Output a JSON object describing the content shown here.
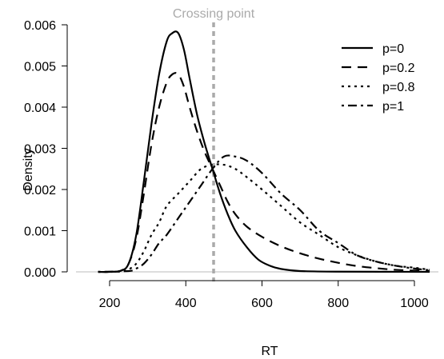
{
  "chart_data": {
    "type": "line",
    "xlabel": "RT",
    "ylabel": "Density",
    "xlim": [
      170,
      1040
    ],
    "ylim": [
      0,
      0.0062
    ],
    "x_ticks": [
      "200",
      "400",
      "600",
      "800",
      "1000"
    ],
    "x_tick_values": [
      200,
      400,
      600,
      800,
      1000
    ],
    "y_ticks": [
      "0.000",
      "0.001",
      "0.002",
      "0.003",
      "0.004",
      "0.005",
      "0.006"
    ],
    "y_tick_values": [
      0,
      0.001,
      0.002,
      0.003,
      0.004,
      0.005,
      0.006
    ],
    "annotation": {
      "label": "Crossing point",
      "x": 473,
      "color": "#aaaaaa"
    },
    "baseline_color": "#bbbbbb",
    "legend_position": "top-right",
    "series": [
      {
        "name": "p=0",
        "dash": "solid",
        "x": [
          170,
          200,
          230,
          250,
          270,
          290,
          310,
          330,
          350,
          365,
          380,
          395,
          410,
          430,
          450,
          470,
          490,
          510,
          530,
          560,
          590,
          620,
          650,
          700,
          800,
          1040
        ],
        "y": [
          0,
          0.0,
          3e-05,
          0.0002,
          0.0009,
          0.0022,
          0.0036,
          0.0048,
          0.0056,
          0.0058,
          0.0058,
          0.0054,
          0.0047,
          0.0038,
          0.0031,
          0.0025,
          0.0019,
          0.0014,
          0.001,
          0.0006,
          0.0003,
          0.00015,
          7e-05,
          2e-05,
          5e-06,
          0
        ]
      },
      {
        "name": "p=0.2",
        "dash": "dashed",
        "x": [
          170,
          200,
          230,
          250,
          270,
          290,
          310,
          330,
          350,
          365,
          380,
          395,
          410,
          430,
          450,
          470,
          490,
          510,
          530,
          560,
          600,
          650,
          700,
          750,
          800,
          850,
          900,
          950,
          1000,
          1040
        ],
        "y": [
          0,
          0.0,
          3e-05,
          0.0002,
          0.0008,
          0.0019,
          0.0031,
          0.004,
          0.0046,
          0.0048,
          0.0048,
          0.0045,
          0.004,
          0.0034,
          0.0029,
          0.0025,
          0.0021,
          0.0017,
          0.0014,
          0.0011,
          0.00085,
          0.00062,
          0.00045,
          0.00032,
          0.00022,
          0.00014,
          9e-05,
          5e-05,
          3e-05,
          2e-05
        ]
      },
      {
        "name": "p=0.8",
        "dash": "dotted",
        "x": [
          170,
          200,
          230,
          250,
          270,
          290,
          310,
          330,
          350,
          380,
          410,
          440,
          470,
          500,
          530,
          560,
          600,
          650,
          700,
          750,
          800,
          850,
          900,
          950,
          1000,
          1040
        ],
        "y": [
          0,
          0.0,
          1e-05,
          6e-05,
          0.0002,
          0.0005,
          0.0009,
          0.0012,
          0.0016,
          0.0019,
          0.0022,
          0.0025,
          0.0026,
          0.0026,
          0.0025,
          0.0023,
          0.002,
          0.0016,
          0.0012,
          0.0009,
          0.0006,
          0.0004,
          0.00025,
          0.00015,
          0.0001,
          5e-05
        ]
      },
      {
        "name": "p=1",
        "dash": "dashdot",
        "x": [
          170,
          250,
          270,
          290,
          310,
          330,
          350,
          380,
          410,
          440,
          470,
          500,
          530,
          560,
          600,
          650,
          700,
          750,
          800,
          850,
          900,
          950,
          1000,
          1040
        ],
        "y": [
          0,
          2e-05,
          8e-05,
          0.0002,
          0.00042,
          0.0007,
          0.0009,
          0.0013,
          0.0017,
          0.0021,
          0.0025,
          0.0028,
          0.0028,
          0.0027,
          0.0024,
          0.0019,
          0.0015,
          0.001,
          0.0007,
          0.0004,
          0.00025,
          0.00015,
          8e-05,
          4e-05
        ]
      }
    ]
  }
}
